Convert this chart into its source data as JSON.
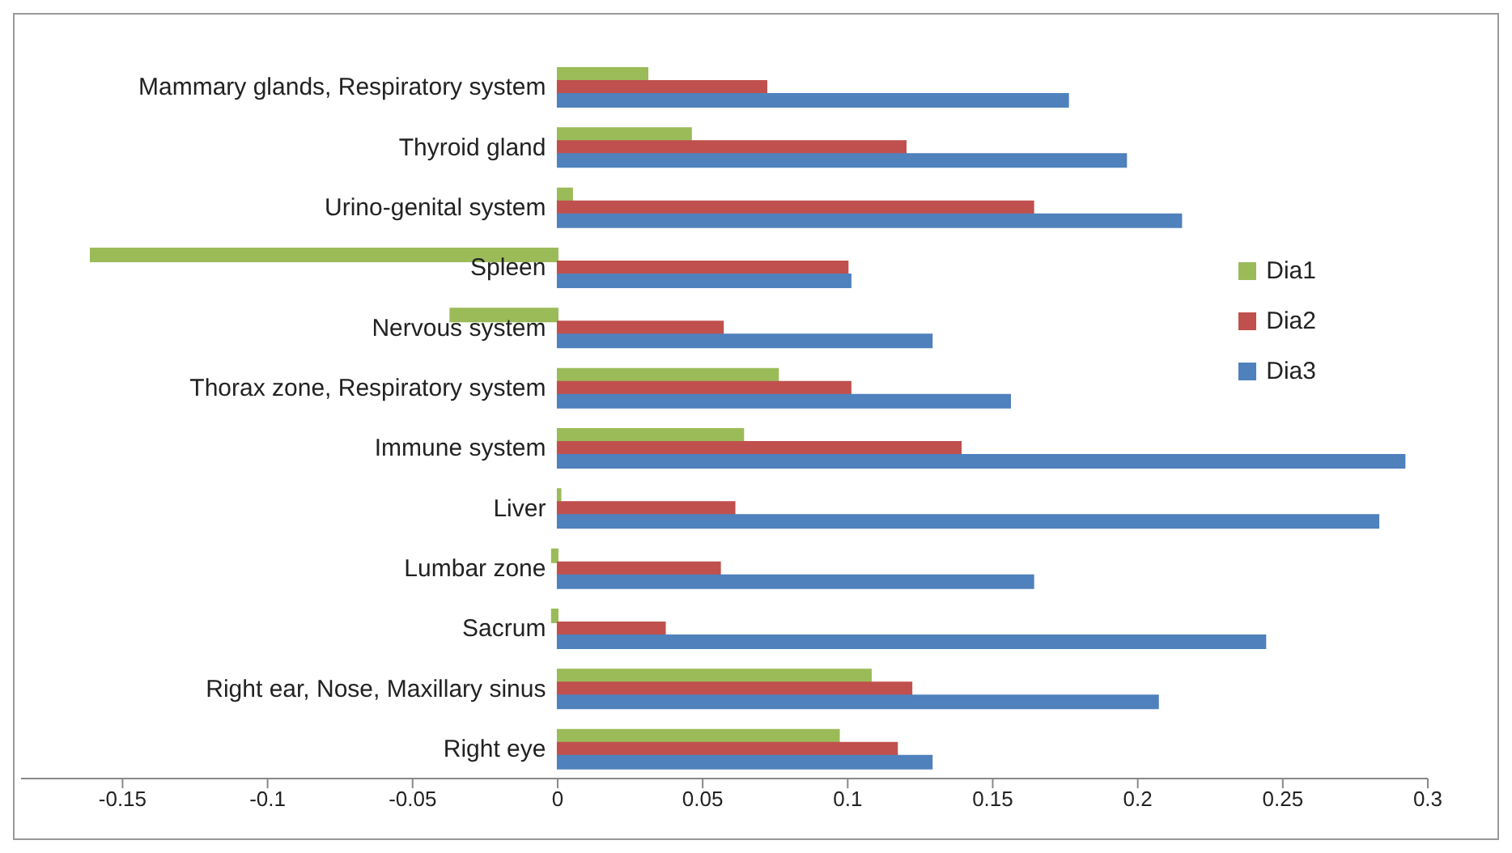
{
  "chart_data": {
    "type": "bar",
    "orientation": "horizontal",
    "categories": [
      "Mammary glands, Respiratory system",
      "Thyroid gland",
      "Urino-genital system",
      "Spleen",
      "Nervous system",
      "Thorax zone, Respiratory system",
      "Immune system",
      "Liver",
      "Lumbar zone",
      "Sacrum",
      "Right ear, Nose, Maxillary sinus",
      "Right eye"
    ],
    "series": [
      {
        "name": "Dia1",
        "color": "#9bbb59",
        "values": [
          0.031,
          0.046,
          0.005,
          -0.161,
          -0.037,
          0.076,
          0.064,
          0.001,
          -0.002,
          -0.002,
          0.108,
          0.097
        ]
      },
      {
        "name": "Dia2",
        "color": "#c0504d",
        "values": [
          0.072,
          0.12,
          0.164,
          0.1,
          0.057,
          0.101,
          0.139,
          0.061,
          0.056,
          0.037,
          0.122,
          0.117
        ]
      },
      {
        "name": "Dia3",
        "color": "#4f81bd",
        "values": [
          0.176,
          0.196,
          0.215,
          0.101,
          0.129,
          0.156,
          0.292,
          0.283,
          0.164,
          0.244,
          0.207,
          0.129
        ]
      }
    ],
    "xlim": [
      -0.185,
      0.3
    ],
    "xticks": [
      -0.15,
      -0.1,
      -0.05,
      0,
      0.05,
      0.1,
      0.15,
      0.2,
      0.25,
      0.3
    ],
    "grid": false,
    "legend": "right"
  }
}
